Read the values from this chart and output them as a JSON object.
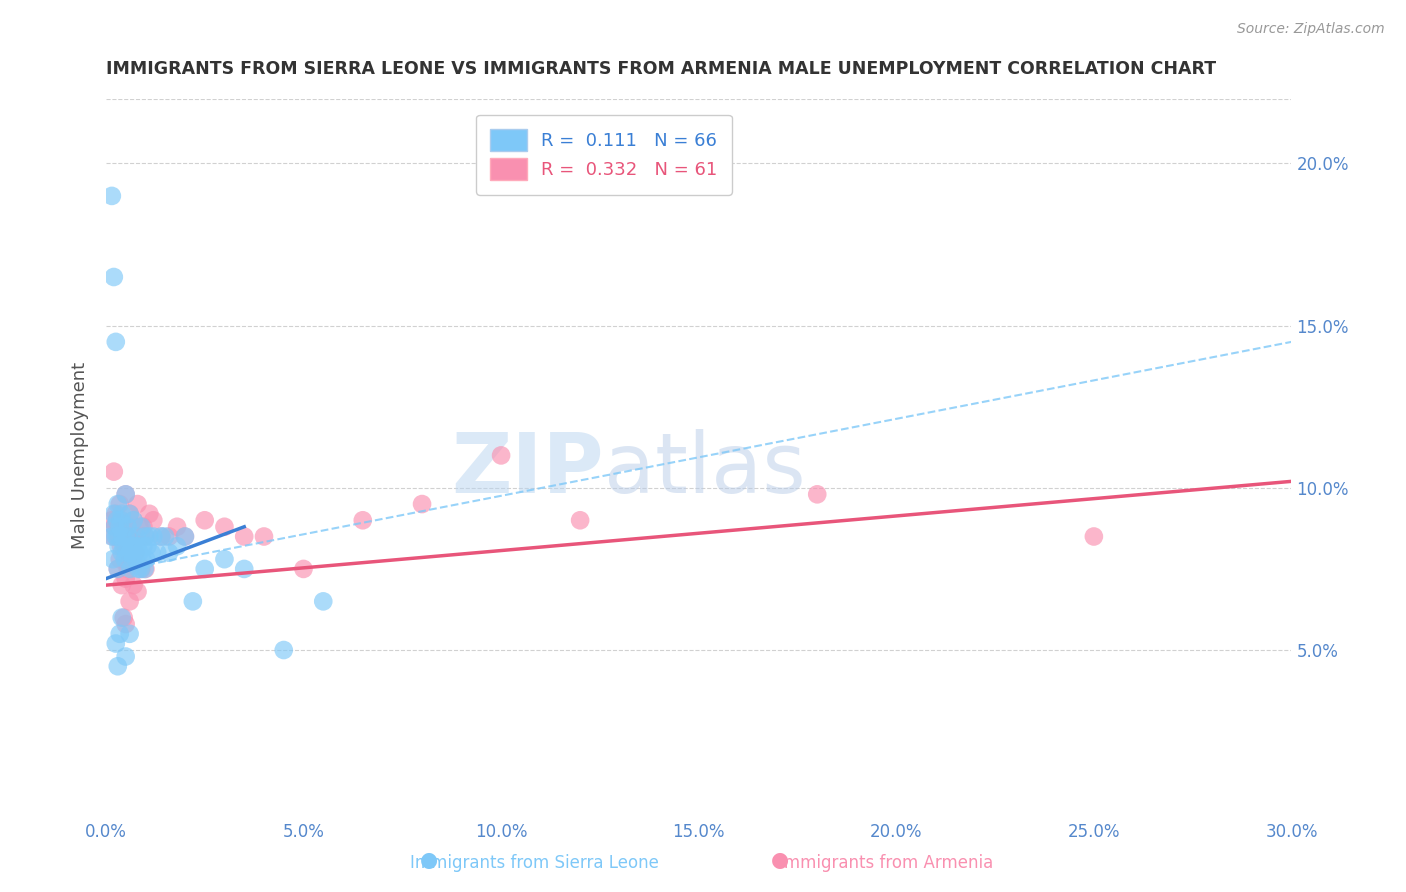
{
  "title": "IMMIGRANTS FROM SIERRA LEONE VS IMMIGRANTS FROM ARMENIA MALE UNEMPLOYMENT CORRELATION CHART",
  "source": "Source: ZipAtlas.com",
  "xlabel_vals": [
    0.0,
    5.0,
    10.0,
    15.0,
    20.0,
    25.0,
    30.0
  ],
  "ylabel": "Male Unemployment",
  "ylabel_right_vals": [
    5.0,
    10.0,
    15.0,
    20.0
  ],
  "xlim": [
    0,
    30
  ],
  "ylim": [
    0,
    22
  ],
  "sierra_leone_R": 0.111,
  "sierra_leone_N": 66,
  "armenia_R": 0.332,
  "armenia_N": 61,
  "sierra_leone_color": "#7EC8F8",
  "armenia_color": "#F990B0",
  "sierra_leone_line_color": "#3A7FD5",
  "armenia_line_color": "#E8557A",
  "legend_label_sl": "Immigrants from Sierra Leone",
  "legend_label_arm": "Immigrants from Armenia",
  "watermark_zip": "ZIP",
  "watermark_atlas": "atlas",
  "background_color": "#FFFFFF",
  "grid_color": "#CCCCCC",
  "title_color": "#333333",
  "axis_label_color": "#5588CC",
  "sl_line_x0": 0.0,
  "sl_line_y0": 7.2,
  "sl_line_x1": 3.5,
  "sl_line_y1": 8.8,
  "arm_line_x0": 0.0,
  "arm_line_y0": 7.0,
  "arm_line_x1": 30.0,
  "arm_line_y1": 10.2,
  "dash_line_x0": 0.5,
  "dash_line_y0": 7.5,
  "dash_line_x1": 30.0,
  "dash_line_y1": 14.5,
  "sierra_leone_x": [
    0.15,
    0.15,
    0.18,
    0.2,
    0.2,
    0.22,
    0.25,
    0.25,
    0.28,
    0.3,
    0.3,
    0.3,
    0.32,
    0.35,
    0.38,
    0.4,
    0.4,
    0.42,
    0.45,
    0.48,
    0.5,
    0.5,
    0.52,
    0.55,
    0.58,
    0.6,
    0.6,
    0.62,
    0.65,
    0.68,
    0.7,
    0.72,
    0.75,
    0.78,
    0.8,
    0.82,
    0.85,
    0.88,
    0.9,
    0.92,
    0.95,
    0.98,
    1.0,
    1.02,
    1.05,
    1.1,
    1.15,
    1.2,
    1.3,
    1.4,
    1.5,
    1.6,
    1.8,
    2.0,
    2.2,
    2.5,
    3.0,
    3.5,
    4.5,
    5.5,
    0.3,
    0.4,
    0.25,
    0.35,
    0.5,
    0.6
  ],
  "sierra_leone_y": [
    19.0,
    8.5,
    7.8,
    16.5,
    9.2,
    8.8,
    14.5,
    8.5,
    9.0,
    9.5,
    8.5,
    7.5,
    8.2,
    8.8,
    9.0,
    9.2,
    8.0,
    8.5,
    8.2,
    7.8,
    9.8,
    8.5,
    8.0,
    8.8,
    8.5,
    9.2,
    8.0,
    7.5,
    8.2,
    7.8,
    9.0,
    8.2,
    7.8,
    8.5,
    8.2,
    7.5,
    8.0,
    7.5,
    8.8,
    7.8,
    8.2,
    7.5,
    8.5,
    7.8,
    8.2,
    8.5,
    8.0,
    8.5,
    8.0,
    8.5,
    8.5,
    8.0,
    8.2,
    8.5,
    6.5,
    7.5,
    7.8,
    7.5,
    5.0,
    6.5,
    4.5,
    6.0,
    5.2,
    5.5,
    4.8,
    5.5
  ],
  "armenia_x": [
    0.15,
    0.18,
    0.2,
    0.22,
    0.25,
    0.28,
    0.3,
    0.32,
    0.35,
    0.38,
    0.4,
    0.42,
    0.45,
    0.48,
    0.5,
    0.52,
    0.55,
    0.58,
    0.6,
    0.62,
    0.65,
    0.68,
    0.7,
    0.72,
    0.75,
    0.78,
    0.8,
    0.85,
    0.9,
    0.95,
    1.0,
    1.1,
    1.2,
    1.4,
    1.6,
    1.8,
    2.0,
    2.5,
    3.0,
    3.5,
    4.0,
    5.0,
    6.5,
    8.0,
    10.0,
    12.0,
    0.3,
    0.35,
    0.4,
    0.5,
    0.55,
    0.6,
    0.7,
    0.8,
    0.9,
    1.0,
    25.0,
    18.0,
    0.45,
    0.6,
    0.5
  ],
  "armenia_y": [
    9.0,
    8.5,
    10.5,
    8.8,
    9.2,
    9.0,
    8.8,
    8.5,
    9.5,
    8.2,
    9.0,
    8.8,
    8.5,
    8.2,
    9.8,
    8.5,
    8.8,
    8.5,
    9.2,
    8.0,
    8.5,
    8.2,
    9.0,
    8.5,
    8.0,
    8.5,
    9.5,
    8.8,
    8.5,
    8.8,
    8.5,
    9.2,
    9.0,
    8.5,
    8.5,
    8.8,
    8.5,
    9.0,
    8.8,
    8.5,
    8.5,
    7.5,
    9.0,
    9.5,
    11.0,
    9.0,
    7.5,
    7.8,
    7.0,
    7.2,
    7.5,
    7.8,
    7.0,
    6.8,
    7.5,
    7.5,
    8.5,
    9.8,
    6.0,
    6.5,
    5.8
  ]
}
